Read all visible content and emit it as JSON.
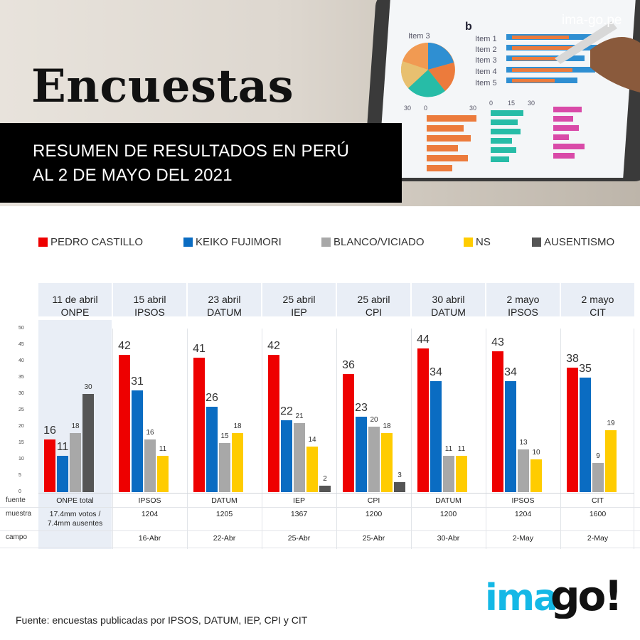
{
  "header": {
    "title": "Encuestas",
    "subtitle_line1": "RESUMEN DE RESULTADOS EN PERÚ",
    "subtitle_line2": "AL 2 DE MAYO DEL 2021",
    "site": "ima-go.pe"
  },
  "illustration": {
    "letter": "b",
    "item_labels": [
      "Item 3",
      "Item 1",
      "Item 2",
      "Item 3",
      "Item 4",
      "Item 5"
    ],
    "tick_labels": [
      "30",
      "0",
      "30",
      "0",
      "15",
      "30"
    ]
  },
  "chart_data": {
    "type": "bar",
    "series": [
      {
        "name": "PEDRO CASTILLO",
        "color": "#ee0000",
        "values": [
          16,
          42,
          41,
          42,
          36,
          44,
          43,
          38
        ]
      },
      {
        "name": "KEIKO FUJIMORI",
        "color": "#0a6cc2",
        "values": [
          11,
          31,
          26,
          22,
          23,
          34,
          34,
          35
        ]
      },
      {
        "name": "BLANCO/VICIADO",
        "color": "#a8a8a8",
        "values": [
          18,
          16,
          15,
          21,
          20,
          11,
          13,
          9
        ]
      },
      {
        "name": "NS",
        "color": "#ffcc00",
        "values": [
          null,
          11,
          18,
          14,
          18,
          11,
          10,
          19
        ]
      },
      {
        "name": "AUSENTISMO",
        "color": "#555555",
        "values": [
          30,
          null,
          null,
          2,
          3,
          null,
          null,
          null
        ]
      }
    ],
    "groups": [
      {
        "date": "11 de abril",
        "pollster": "ONPE",
        "fuente": "ONPE  total",
        "muestra": "17.4mm votos / 7.4mm ausentes",
        "campo": ""
      },
      {
        "date": "15 abril",
        "pollster": "IPSOS",
        "fuente": "IPSOS",
        "muestra": "1204",
        "campo": "16-Abr"
      },
      {
        "date": "23 abril",
        "pollster": "DATUM",
        "fuente": "DATUM",
        "muestra": "1205",
        "campo": "22-Abr"
      },
      {
        "date": "25 abril",
        "pollster": "IEP",
        "fuente": "IEP",
        "muestra": "1367",
        "campo": "25-Abr"
      },
      {
        "date": "25 abril",
        "pollster": "CPI",
        "fuente": "CPI",
        "muestra": "1200",
        "campo": "25-Abr"
      },
      {
        "date": "30 abril",
        "pollster": "DATUM",
        "fuente": "DATUM",
        "muestra": "1200",
        "campo": "30-Abr"
      },
      {
        "date": "2 mayo",
        "pollster": "IPSOS",
        "fuente": "IPSOS",
        "muestra": "1204",
        "campo": "2-May"
      },
      {
        "date": "2 mayo",
        "pollster": "CIT",
        "fuente": "CIT",
        "muestra": "1600",
        "campo": "2-May"
      }
    ],
    "y_ticks": [
      0,
      5,
      10,
      15,
      20,
      25,
      30,
      35,
      40,
      45,
      50
    ],
    "ylim": [
      0,
      50
    ],
    "row_labels": {
      "fuente": "fuente",
      "muestra": "muestra",
      "campo": "campo"
    },
    "legend_position": "top"
  },
  "footer": {
    "source": "Fuente: encuestas publicadas por IPSOS, DATUM, IEP, CPI  y CIT",
    "logo_text": "imago!"
  }
}
